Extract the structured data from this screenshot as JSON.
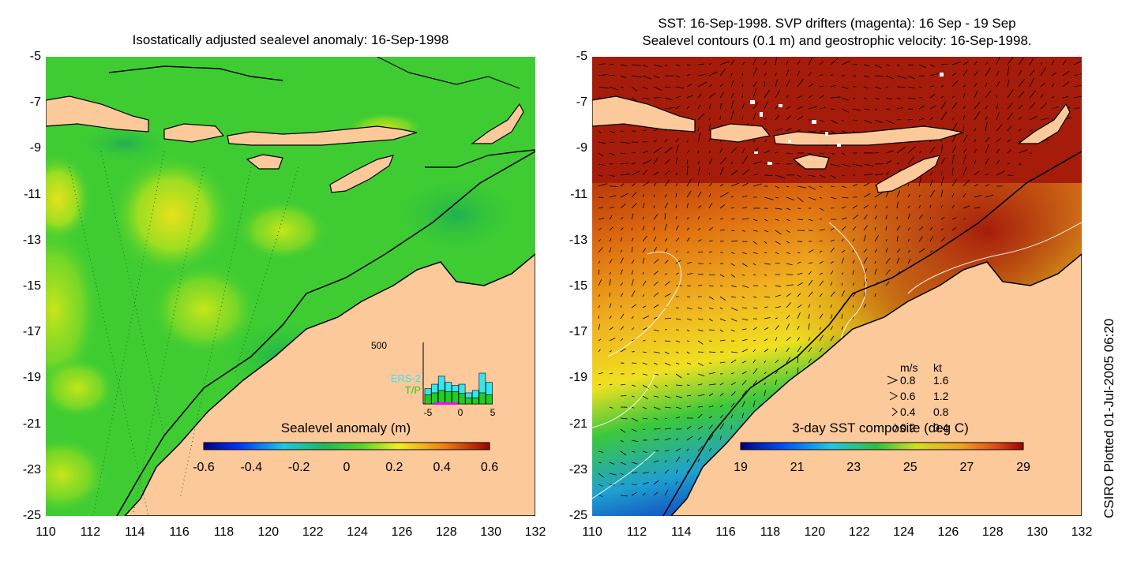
{
  "left_panel": {
    "title": "Isostatically adjusted sealevel anomaly: 16-Sep-1998",
    "colorbar": {
      "label": "Sealevel anomaly (m)",
      "ticks": [
        "-0.6",
        "-0.4",
        "-0.2",
        "0",
        "0.2",
        "0.4",
        "0.6"
      ],
      "range": [
        -0.6,
        0.6
      ]
    },
    "inset": {
      "ymax_label": "500",
      "series": [
        "ERS-2",
        "T/P"
      ],
      "series_colors": [
        "#33e6f0",
        "#22cc22"
      ],
      "x_ticks": [
        "-5",
        "0",
        "5"
      ],
      "ers2": [
        0.25,
        0.32,
        0.45,
        0.35,
        0.3,
        0.32,
        0.18,
        0.22,
        0.5,
        0.35
      ],
      "tp": [
        0.15,
        0.18,
        0.22,
        0.2,
        0.2,
        0.17,
        0.1,
        0.1,
        0.18,
        0.15
      ]
    }
  },
  "right_panel": {
    "title_line1": "SST: 16-Sep-1998. SVP drifters (magenta): 16 Sep - 19 Sep",
    "title_line2": "Sealevel contours (0.1 m) and geostrophic velocity: 16-Sep-1998.",
    "colorbar": {
      "label": "3-day SST composite (deg C)",
      "ticks": [
        "19",
        "21",
        "23",
        "25",
        "27",
        "29"
      ],
      "range": [
        19,
        29
      ]
    },
    "velocity_key": {
      "header_ms": "m/s",
      "header_kt": "kt",
      "rows": [
        {
          "ms": "0.8",
          "kt": "1.6"
        },
        {
          "ms": "0.6",
          "kt": "1.2"
        },
        {
          "ms": "0.4",
          "kt": "0.8"
        },
        {
          "ms": "0.2",
          "kt": "0.4"
        }
      ]
    }
  },
  "axes": {
    "lat_labels": [
      "-5",
      "-7",
      "-9",
      "-11",
      "-13",
      "-15",
      "-17",
      "-19",
      "-21",
      "-23",
      "-25"
    ],
    "lon_labels": [
      "110",
      "112",
      "114",
      "116",
      "118",
      "120",
      "122",
      "124",
      "126",
      "128",
      "130",
      "132"
    ]
  },
  "credit": "CSIRO Plotted 01-Jul-2005 06:20",
  "colors": {
    "land": "#fcc99b",
    "sea_green": "#33cc33",
    "sst_red": "#a51c0b"
  }
}
